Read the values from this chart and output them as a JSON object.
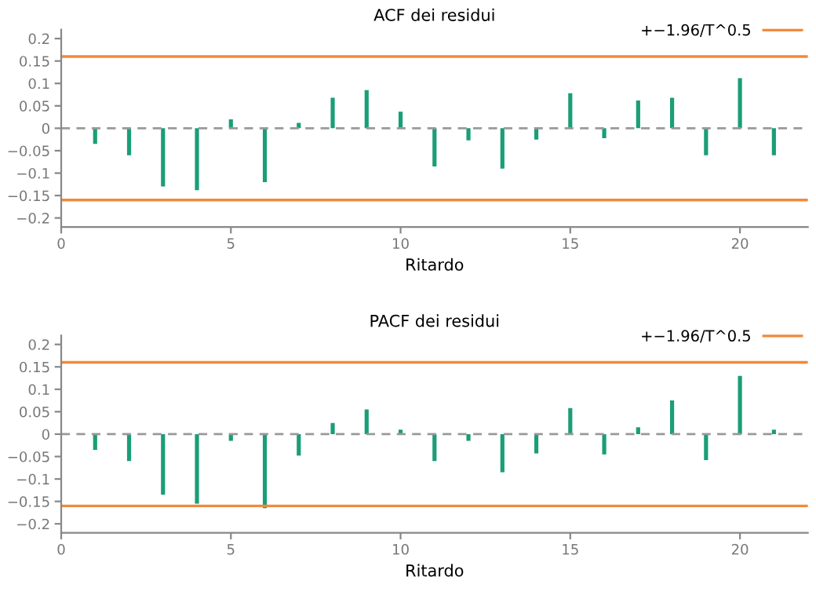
{
  "chart_data": [
    {
      "type": "bar",
      "title": "ACF dei residui",
      "xlabel": "Ritardo",
      "x": [
        1,
        2,
        3,
        4,
        5,
        6,
        7,
        8,
        9,
        10,
        11,
        12,
        13,
        14,
        15,
        16,
        17,
        18,
        19,
        20,
        21
      ],
      "series": [
        {
          "color": "#1a9e77",
          "values": [
            -0.035,
            -0.06,
            -0.13,
            -0.138,
            0.02,
            -0.12,
            0.012,
            0.068,
            0.085,
            0.037,
            -0.085,
            -0.027,
            -0.09,
            -0.025,
            0.078,
            -0.022,
            0.062,
            0.068,
            -0.06,
            0.112,
            -0.06
          ]
        }
      ],
      "xlim": [
        0,
        22
      ],
      "xticks": [
        0,
        5,
        10,
        15,
        20
      ],
      "ylim": [
        -0.22,
        0.22
      ],
      "yticks": [
        -0.2,
        -0.15,
        -0.1,
        -0.05,
        0,
        0.05,
        0.1,
        0.15,
        0.2
      ],
      "ref_lines": [
        {
          "axis": "y",
          "value": 0.16,
          "label": "+−1.96/T^0.5",
          "color": "#f08a3c",
          "line_style": "solid"
        },
        {
          "axis": "y",
          "value": -0.16,
          "color": "#f08a3c",
          "line_style": "solid"
        },
        {
          "axis": "y",
          "value": 0,
          "color": "#999999",
          "line_style": "dashed"
        }
      ],
      "legend": "top right",
      "grid": false
    },
    {
      "type": "bar",
      "title": "PACF dei residui",
      "xlabel": "Ritardo",
      "x": [
        1,
        2,
        3,
        4,
        5,
        6,
        7,
        8,
        9,
        10,
        11,
        12,
        13,
        14,
        15,
        16,
        17,
        18,
        19,
        20,
        21
      ],
      "series": [
        {
          "color": "#1a9e77",
          "values": [
            -0.035,
            -0.06,
            -0.135,
            -0.155,
            -0.015,
            -0.165,
            -0.048,
            0.025,
            0.055,
            0.01,
            -0.06,
            -0.015,
            -0.085,
            -0.043,
            0.058,
            -0.045,
            0.015,
            0.075,
            -0.058,
            0.13,
            0.01
          ]
        }
      ],
      "xlim": [
        0,
        22
      ],
      "xticks": [
        0,
        5,
        10,
        15,
        20
      ],
      "ylim": [
        -0.22,
        0.22
      ],
      "yticks": [
        -0.2,
        -0.15,
        -0.1,
        -0.05,
        0,
        0.05,
        0.1,
        0.15,
        0.2
      ],
      "ref_lines": [
        {
          "axis": "y",
          "value": 0.16,
          "label": "+−1.96/T^0.5",
          "color": "#f08a3c",
          "line_style": "solid"
        },
        {
          "axis": "y",
          "value": -0.16,
          "color": "#f08a3c",
          "line_style": "solid"
        },
        {
          "axis": "y",
          "value": 0,
          "color": "#999999",
          "line_style": "dashed"
        }
      ],
      "legend": "top right",
      "grid": false
    }
  ]
}
